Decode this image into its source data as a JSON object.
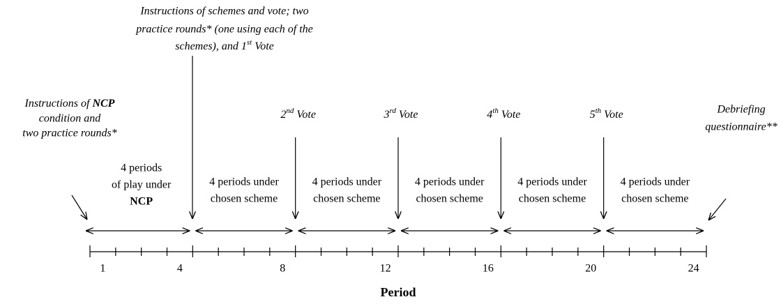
{
  "left_note": [
    [
      "Instructions of ",
      "NCP"
    ],
    [
      "condition and"
    ],
    [
      "two practice rounds*"
    ]
  ],
  "top_note": [
    [
      "Instructions of schemes and vote; two"
    ],
    [
      "practice rounds* (one using each of the"
    ],
    [
      "schemes), and 1",
      "st",
      "Vote"
    ]
  ],
  "votes": [
    {
      "number": "2",
      "suffix": "nd",
      "word": "Vote"
    },
    {
      "number": "3",
      "suffix": "rd",
      "word": "Vote"
    },
    {
      "number": "4",
      "suffix": "th",
      "word": "Vote"
    },
    {
      "number": "5",
      "suffix": "th",
      "word": "Vote"
    }
  ],
  "right_note": [
    "Debriefing",
    "questionnaire**"
  ],
  "blocks": [
    [
      "4 periods",
      "of play under",
      "NCP"
    ],
    [
      "4 periods under",
      "chosen scheme"
    ],
    [
      "4 periods under",
      "chosen scheme"
    ],
    [
      "4 periods under",
      "chosen scheme"
    ],
    [
      "4 periods under",
      "chosen scheme"
    ],
    [
      "4 periods under",
      "chosen scheme"
    ]
  ],
  "tick_labels": [
    "1",
    "4",
    "8",
    "12",
    "16",
    "20",
    "24"
  ],
  "axis_label": "Period"
}
